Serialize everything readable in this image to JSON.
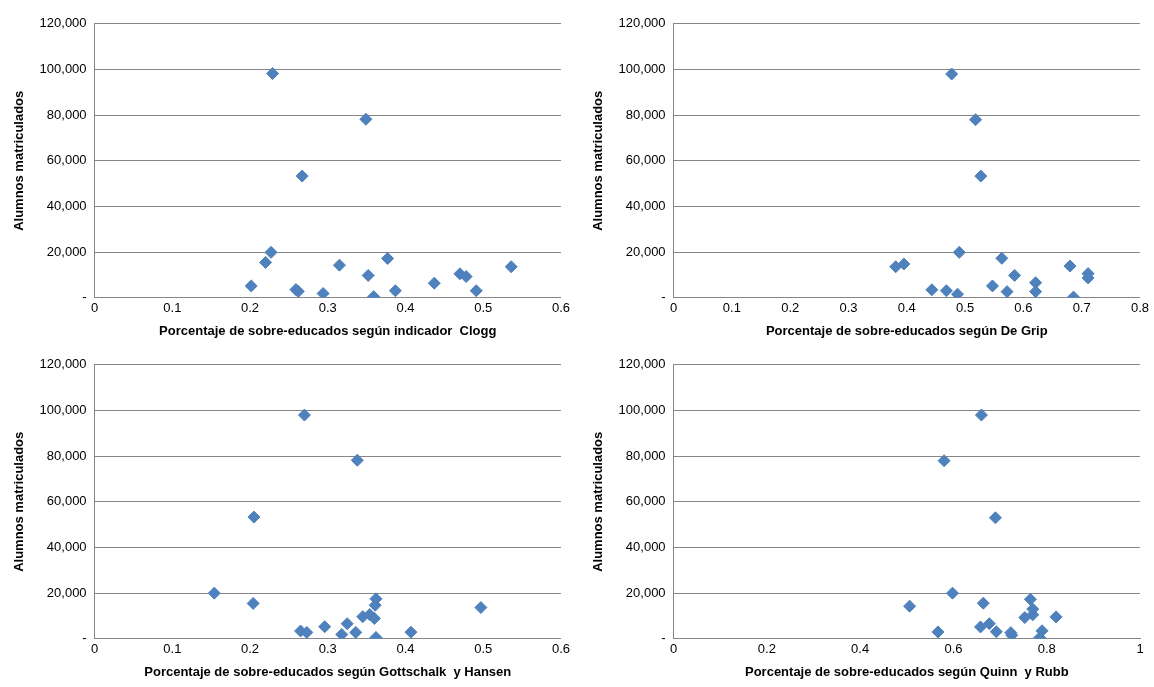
{
  "chart_data": [
    {
      "type": "scatter",
      "xlabel": "Porcentaje de sobre-educados según indicador  Clogg",
      "ylabel": "Alumnos matriculados",
      "grid": "y",
      "legend": false,
      "marker": "diamond",
      "series": [
        {
          "color": "#4f81bd",
          "x": [
            0.229,
            0.349,
            0.267,
            0.227,
            0.22,
            0.2015,
            0.259,
            0.262,
            0.294,
            0.315,
            0.352,
            0.377,
            0.359,
            0.387,
            0.437,
            0.47,
            0.478,
            0.491,
            0.536
          ],
          "values": [
            98200,
            78200,
            53300,
            19900,
            15500,
            5200,
            3600,
            2800,
            1900,
            14300,
            9800,
            17200,
            500,
            3100,
            6400,
            10500,
            9300,
            3100,
            13600
          ]
        }
      ],
      "xlim": [
        0,
        0.6
      ],
      "xticks": [
        0,
        0.1,
        0.2,
        0.3,
        0.4,
        0.5,
        0.6
      ],
      "ylim": [
        0,
        120000
      ],
      "yticks": [
        {
          "value": 0,
          "label": "-"
        },
        {
          "value": 20000,
          "label": "20,000"
        },
        {
          "value": 40000,
          "label": "40,000"
        },
        {
          "value": 60000,
          "label": "60,000"
        },
        {
          "value": 80000,
          "label": "80,000"
        },
        {
          "value": 100000,
          "label": "100,000"
        },
        {
          "value": 120000,
          "label": "120,000"
        }
      ]
    },
    {
      "type": "scatter",
      "xlabel": "Porcentaje de sobre-educados según De Grip",
      "ylabel": "Alumnos matriculados",
      "grid": "y",
      "legend": false,
      "marker": "diamond",
      "series": [
        {
          "color": "#4f81bd",
          "x": [
            0.477,
            0.518,
            0.527,
            0.381,
            0.395,
            0.49,
            0.443,
            0.468,
            0.487,
            0.547,
            0.563,
            0.572,
            0.585,
            0.621,
            0.621,
            0.68,
            0.686,
            0.711,
            0.711
          ],
          "values": [
            98000,
            78000,
            53300,
            13600,
            14800,
            19900,
            3500,
            3100,
            1600,
            5200,
            17300,
            2700,
            9800,
            6600,
            2700,
            13900,
            300,
            10600,
            8700
          ]
        }
      ],
      "xlim": [
        0,
        0.8
      ],
      "xticks": [
        0,
        0.1,
        0.2,
        0.3,
        0.4,
        0.5,
        0.6,
        0.7,
        0.8
      ],
      "ylim": [
        0,
        120000
      ],
      "yticks": [
        {
          "value": 0,
          "label": "-"
        },
        {
          "value": 20000,
          "label": "20,000"
        },
        {
          "value": 40000,
          "label": "40,000"
        },
        {
          "value": 60000,
          "label": "60,000"
        },
        {
          "value": 80000,
          "label": "80,000"
        },
        {
          "value": 100000,
          "label": "100,000"
        },
        {
          "value": 120000,
          "label": "120,000"
        }
      ]
    },
    {
      "type": "scatter",
      "xlabel": "Porcentaje de sobre-educados según Gottschalk  y Hansen",
      "ylabel": "Alumnos matriculados",
      "grid": "y",
      "legend": false,
      "marker": "diamond",
      "series": [
        {
          "color": "#4f81bd",
          "x": [
            0.27,
            0.338,
            0.205,
            0.154,
            0.204,
            0.265,
            0.273,
            0.296,
            0.318,
            0.325,
            0.336,
            0.345,
            0.354,
            0.36,
            0.361,
            0.362,
            0.362,
            0.407,
            0.497
          ],
          "values": [
            98000,
            78200,
            53300,
            20000,
            15500,
            3400,
            2800,
            5300,
            1900,
            6600,
            2800,
            9700,
            10600,
            8900,
            14700,
            17500,
            600,
            2900,
            13700
          ]
        }
      ],
      "xlim": [
        0,
        0.6
      ],
      "xticks": [
        0,
        0.1,
        0.2,
        0.3,
        0.4,
        0.5,
        0.6
      ],
      "ylim": [
        0,
        120000
      ],
      "yticks": [
        {
          "value": 0,
          "label": "-"
        },
        {
          "value": 20000,
          "label": "20,000"
        },
        {
          "value": 40000,
          "label": "40,000"
        },
        {
          "value": 60000,
          "label": "60,000"
        },
        {
          "value": 80000,
          "label": "80,000"
        },
        {
          "value": 100000,
          "label": "100,000"
        },
        {
          "value": 120000,
          "label": "120,000"
        }
      ]
    },
    {
      "type": "scatter",
      "xlabel": "Porcentaje de sobre-educados según Quinn  y Rubb",
      "ylabel": "Alumnos matriculados",
      "grid": "y",
      "legend": false,
      "marker": "diamond",
      "series": [
        {
          "color": "#4f81bd",
          "x": [
            0.66,
            0.58,
            0.69,
            0.506,
            0.567,
            0.598,
            0.664,
            0.658,
            0.677,
            0.692,
            0.723,
            0.725,
            0.753,
            0.765,
            0.77,
            0.77,
            0.79,
            0.785,
            0.82
          ],
          "values": [
            98000,
            78000,
            53000,
            14300,
            3000,
            20000,
            15600,
            5200,
            6600,
            3100,
            2700,
            1600,
            9300,
            17300,
            13000,
            10500,
            3500,
            500,
            9600
          ]
        }
      ],
      "xlim": [
        0,
        1
      ],
      "xticks": [
        0,
        0.2,
        0.4,
        0.6,
        0.8,
        1
      ],
      "ylim": [
        0,
        120000
      ],
      "yticks": [
        {
          "value": 0,
          "label": "-"
        },
        {
          "value": 20000,
          "label": "20,000"
        },
        {
          "value": 40000,
          "label": "40,000"
        },
        {
          "value": 60000,
          "label": "60,000"
        },
        {
          "value": 80000,
          "label": "80,000"
        },
        {
          "value": 100000,
          "label": "100,000"
        },
        {
          "value": 120000,
          "label": "120,000"
        }
      ]
    }
  ]
}
